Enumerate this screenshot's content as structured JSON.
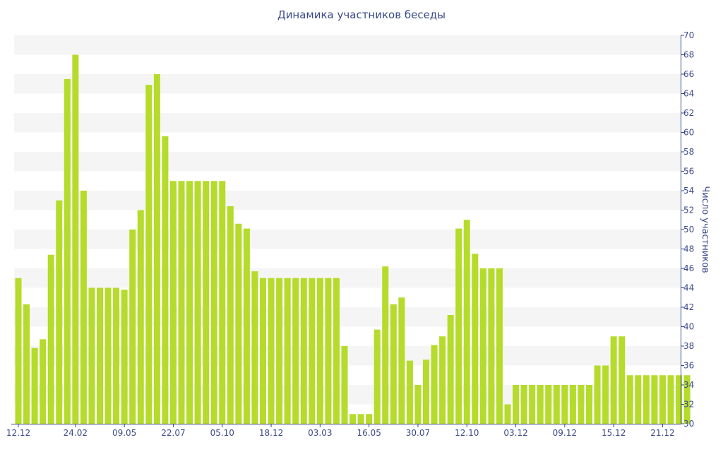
{
  "chart_data": {
    "type": "bar",
    "title": "Динамика участников беседы",
    "xlabel": "",
    "ylabel": "Число участников",
    "ylim": [
      30,
      70
    ],
    "y_ticks": [
      30,
      32,
      34,
      36,
      38,
      40,
      42,
      44,
      46,
      48,
      50,
      52,
      54,
      56,
      58,
      60,
      62,
      64,
      66,
      68,
      70
    ],
    "y_axis_side": "right",
    "x_tick_labels": [
      "12.12",
      "24.02",
      "09.05",
      "22.07",
      "05.10",
      "18.12",
      "03.03",
      "16.05",
      "30.07",
      "12.10",
      "03.12",
      "09.12",
      "15.12",
      "21.12"
    ],
    "x_tick_positions": [
      0,
      7,
      13,
      19,
      25,
      31,
      37,
      43,
      49,
      55,
      61,
      67,
      73,
      79
    ],
    "grid": "alternating horizontal bands",
    "legend": "none",
    "colors": {
      "bar": "#b5db2b",
      "band": "#f5f5f5",
      "text": "#3a4a8a",
      "axis": "#3a4a8a"
    },
    "values": [
      45,
      42.3,
      37.8,
      38.7,
      47.4,
      53,
      65.5,
      68,
      54,
      44,
      44,
      44,
      44,
      43.8,
      50,
      52,
      64.9,
      66,
      59.6,
      55,
      55,
      55,
      55,
      55,
      55,
      55,
      52.4,
      50.6,
      50.1,
      45.7,
      45,
      45,
      45,
      45,
      45,
      45,
      45,
      45,
      45,
      45,
      38,
      31,
      31,
      31,
      39.7,
      46.2,
      42.3,
      43,
      36.5,
      34,
      36.6,
      38.1,
      39,
      41.2,
      50.1,
      51,
      47.5,
      46,
      46,
      46,
      32,
      34,
      34,
      34,
      34,
      34,
      34,
      34,
      34,
      34,
      34,
      36,
      36,
      39,
      39,
      35,
      35,
      35,
      35,
      35,
      35,
      35,
      35
    ]
  }
}
